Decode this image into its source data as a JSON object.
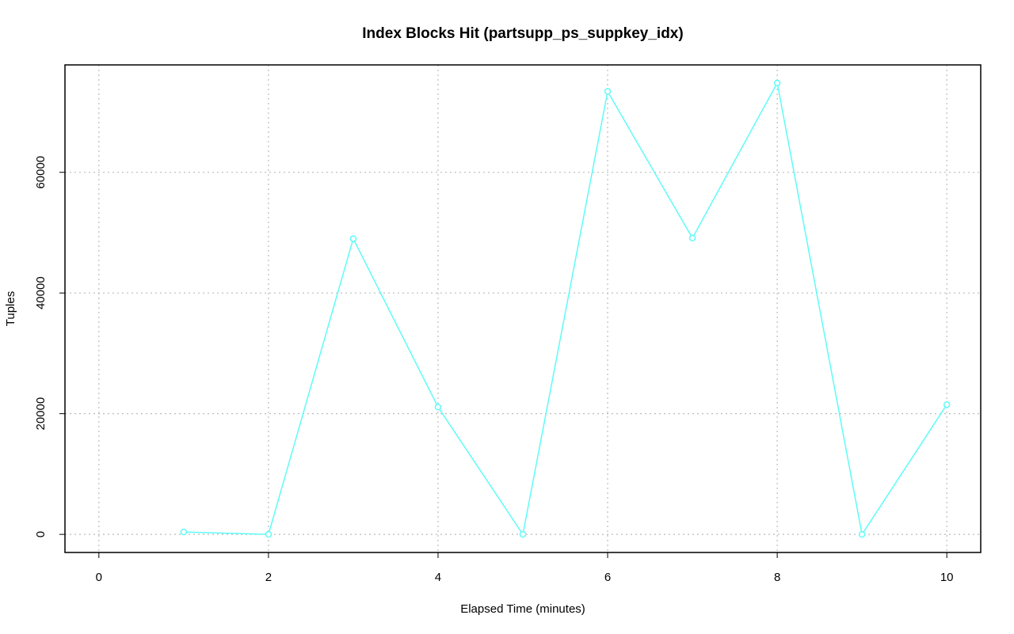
{
  "chart_data": {
    "type": "line",
    "title": "Index Blocks Hit (partsupp_ps_suppkey_idx)",
    "x_label": "Elapsed Time (minutes)",
    "y_label": "Tuples",
    "x": [
      1,
      2,
      3,
      4,
      5,
      6,
      7,
      8,
      9,
      10
    ],
    "series": [
      {
        "name": "partsupp_ps_suppkey_idx",
        "color": "#5ffbf8",
        "values": [
          400,
          0,
          49000,
          21100,
          0,
          73400,
          49100,
          74800,
          0,
          21500
        ]
      }
    ],
    "xlim": [
      -0.4,
      10.4
    ],
    "xticks": [
      0,
      2,
      4,
      6,
      8,
      10
    ],
    "ylim": [
      -3000,
      77800
    ],
    "yticks": [
      0,
      20000,
      40000,
      60000
    ],
    "grid": true
  }
}
